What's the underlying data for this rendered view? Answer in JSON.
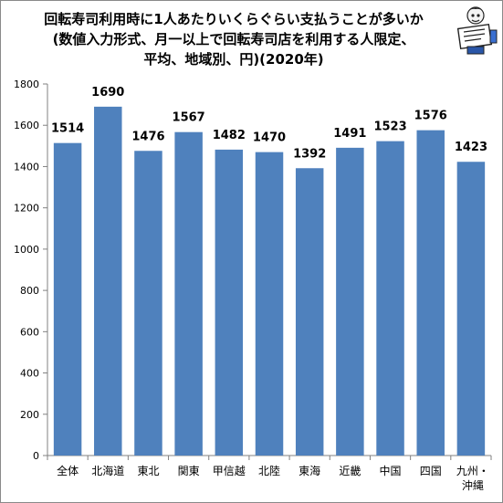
{
  "chart_data": {
    "type": "bar",
    "title_lines": [
      "回転寿司利用時に1人あたりいくらぐらい支払うことが多いか",
      "(数値入力形式、月一以上で回転寿司店を利用する人限定、",
      "平均、地域別、円)(2020年)"
    ],
    "categories": [
      "全体",
      "北海道",
      "東北",
      "関東",
      "甲信越",
      "北陸",
      "東海",
      "近畿",
      "中国",
      "四国",
      [
        "九州・",
        "沖縄"
      ]
    ],
    "values": [
      1514,
      1690,
      1476,
      1567,
      1482,
      1470,
      1392,
      1491,
      1523,
      1576,
      1423
    ],
    "ylim": [
      0,
      1800
    ],
    "yticks": [
      0,
      200,
      400,
      600,
      800,
      1000,
      1200,
      1400,
      1600,
      1800
    ],
    "bar_color": "#4f81bd",
    "grid": false,
    "legend": "none",
    "xlabel": "",
    "ylabel": ""
  },
  "logo": {
    "icon": "newspaper-reader-mascot"
  }
}
